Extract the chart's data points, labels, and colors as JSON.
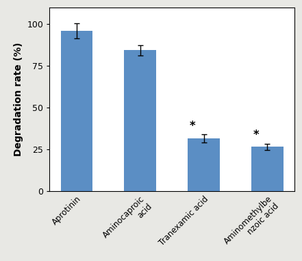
{
  "categories": [
    "Aprotinin",
    "Aminocaproic\nacid",
    "Tranexamic acid",
    "Aminomethylbe\nnzoic acid"
  ],
  "values": [
    96.0,
    84.5,
    31.5,
    26.5
  ],
  "errors": [
    4.5,
    3.0,
    2.5,
    2.0
  ],
  "bar_color": "#5b8ec4",
  "ylabel": "Degradation rate (%)",
  "ylim": [
    0,
    110
  ],
  "yticks": [
    0,
    25,
    50,
    75,
    100
  ],
  "bar_width": 0.5,
  "significant": [
    false,
    false,
    true,
    true
  ],
  "star_symbol": "*",
  "fig_bg_color": "#e8e8e4",
  "plot_bg_color": "#ffffff"
}
